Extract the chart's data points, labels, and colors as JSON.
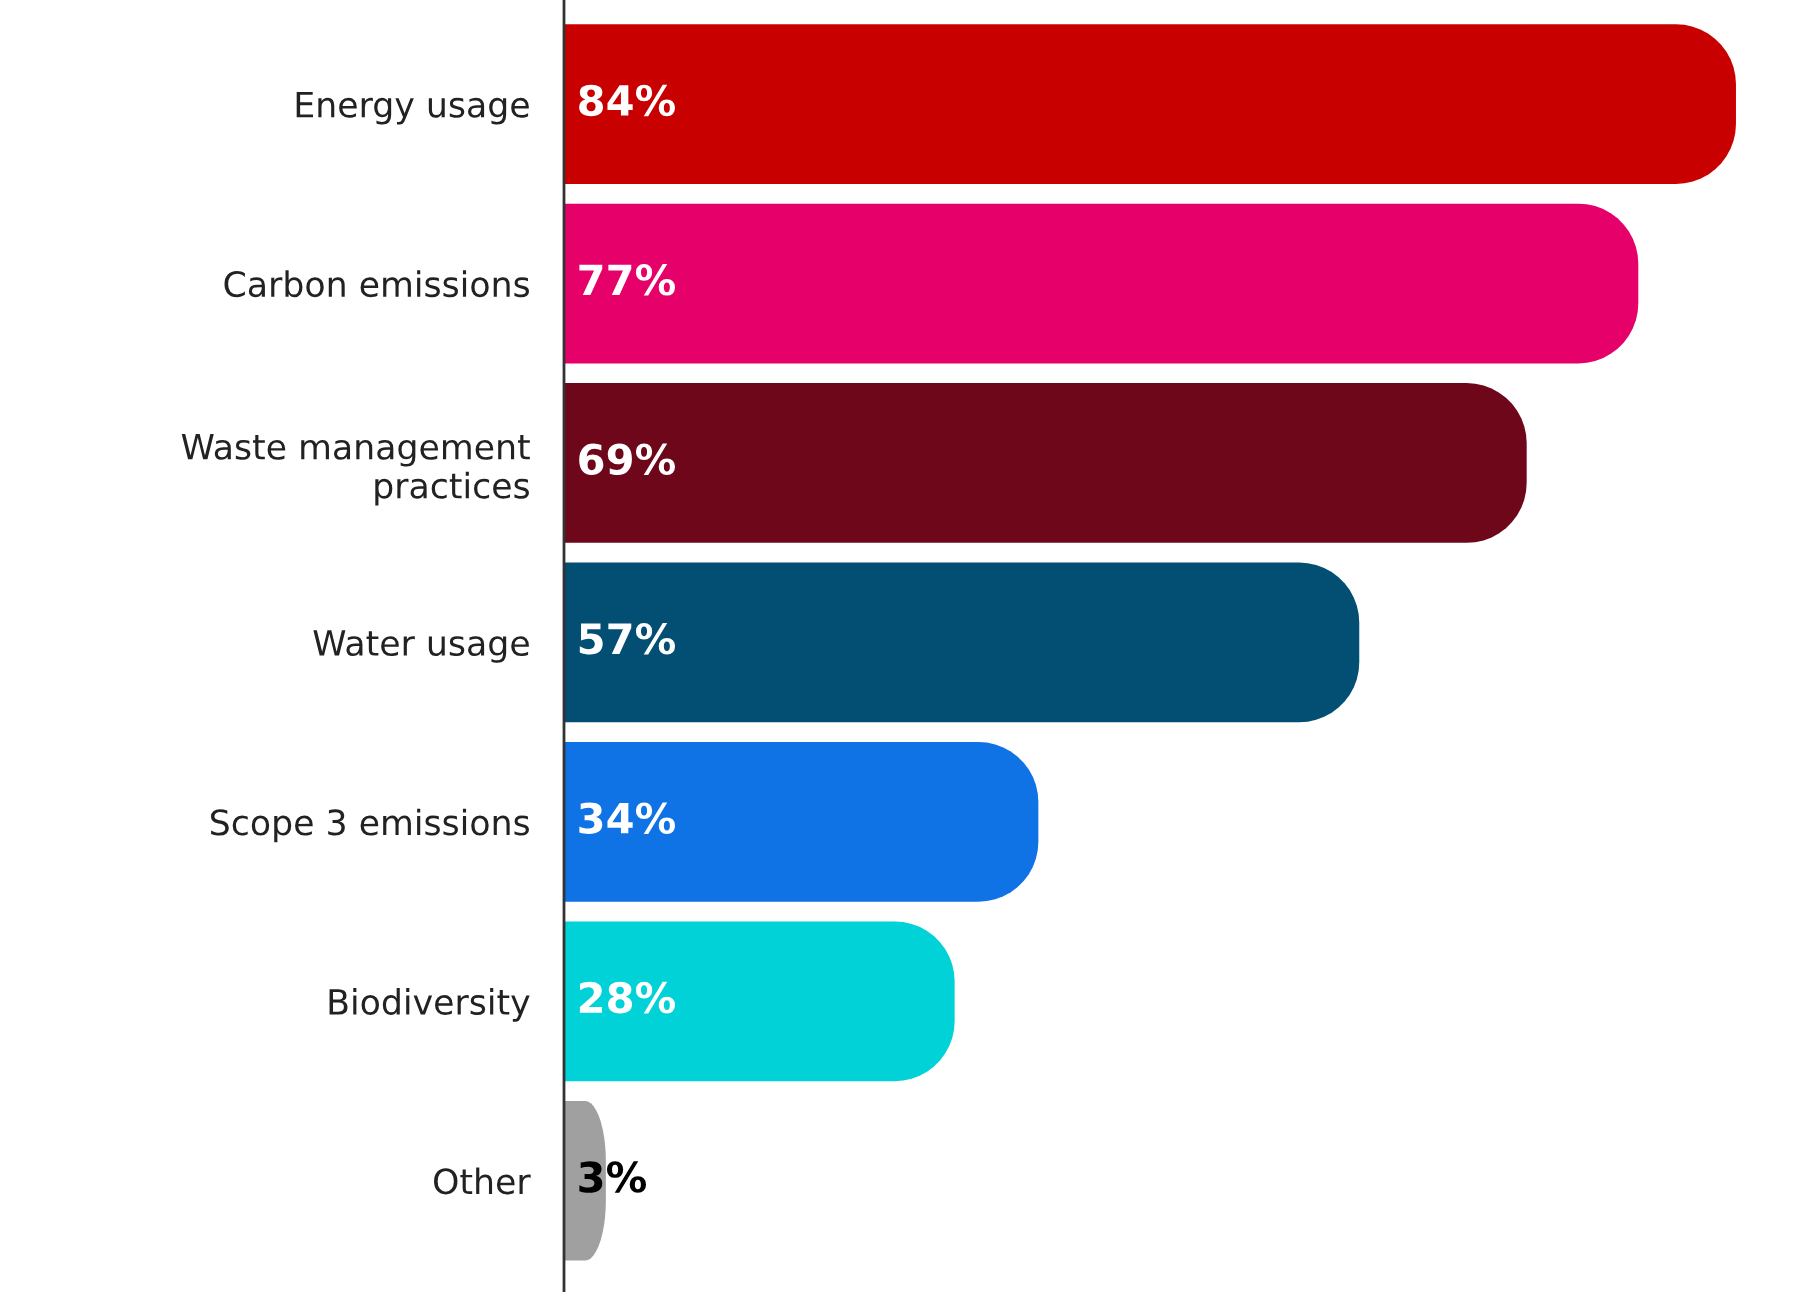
{
  "chart_data": {
    "type": "bar",
    "orientation": "horizontal",
    "categories": [
      "Energy usage",
      "Carbon emissions",
      "Waste management\npractices",
      "Water usage",
      "Scope 3 emissions",
      "Biodiversity",
      "Other"
    ],
    "values": [
      84,
      77,
      69,
      57,
      34,
      28,
      3
    ],
    "colors": [
      "#c90000",
      "#e5006a",
      "#6d0719",
      "#034e73",
      "#0f73e6",
      "#00d2d8",
      "#a0a0a0"
    ],
    "value_labels": [
      "84%",
      "77%",
      "69%",
      "57%",
      "34%",
      "28%",
      "3%"
    ],
    "grid": false,
    "legend": false
  }
}
